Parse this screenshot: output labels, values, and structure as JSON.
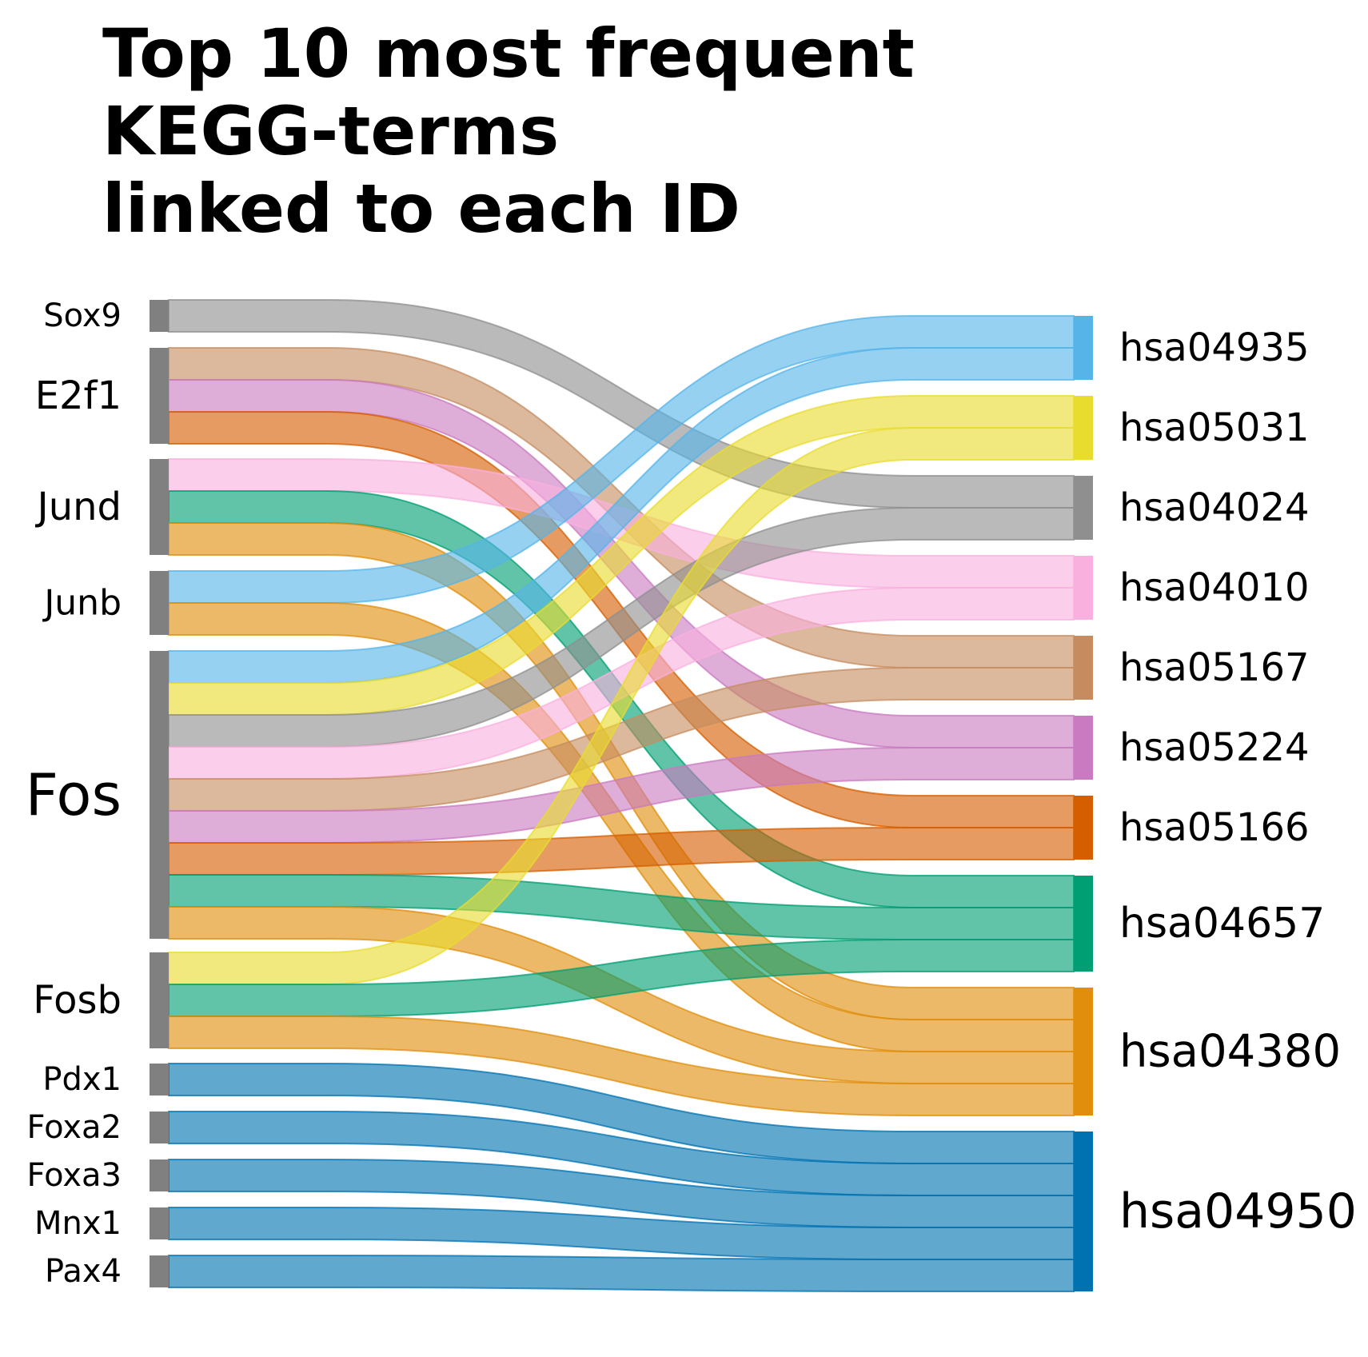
{
  "chart_data": {
    "type": "sankey",
    "title_lines": [
      "Top 10 most frequent",
      "KEGG-terms",
      "linked to each ID"
    ],
    "sources": [
      "Sox9",
      "E2f1",
      "Jund",
      "Junb",
      "Fos",
      "Fosb",
      "Pdx1",
      "Foxa2",
      "Foxa3",
      "Mnx1",
      "Pax4"
    ],
    "targets": [
      "hsa04935",
      "hsa05031",
      "hsa04024",
      "hsa04010",
      "hsa05167",
      "hsa05224",
      "hsa05166",
      "hsa04657",
      "hsa04380",
      "hsa04950"
    ],
    "target_colors": {
      "hsa04935": "#56B4E9",
      "hsa05031": "#E8DC2F",
      "hsa04024": "#8F8F8F",
      "hsa04010": "#F9B0DF",
      "hsa05167": "#C68C60",
      "hsa05224": "#C97AC0",
      "hsa05166": "#D55E00",
      "hsa04657": "#009E73",
      "hsa04380": "#E08E0B",
      "hsa04950": "#0072B2"
    },
    "source_node_color": "#808080",
    "links": [
      {
        "source": "Sox9",
        "target": "hsa04024",
        "value": 1
      },
      {
        "source": "E2f1",
        "target": "hsa05167",
        "value": 1
      },
      {
        "source": "E2f1",
        "target": "hsa05224",
        "value": 1
      },
      {
        "source": "E2f1",
        "target": "hsa05166",
        "value": 1
      },
      {
        "source": "Jund",
        "target": "hsa04010",
        "value": 1
      },
      {
        "source": "Jund",
        "target": "hsa04657",
        "value": 1
      },
      {
        "source": "Jund",
        "target": "hsa04380",
        "value": 1
      },
      {
        "source": "Junb",
        "target": "hsa04935",
        "value": 1
      },
      {
        "source": "Junb",
        "target": "hsa04380",
        "value": 1
      },
      {
        "source": "Fos",
        "target": "hsa04935",
        "value": 1
      },
      {
        "source": "Fos",
        "target": "hsa05031",
        "value": 1
      },
      {
        "source": "Fos",
        "target": "hsa04024",
        "value": 1
      },
      {
        "source": "Fos",
        "target": "hsa04010",
        "value": 1
      },
      {
        "source": "Fos",
        "target": "hsa05167",
        "value": 1
      },
      {
        "source": "Fos",
        "target": "hsa05224",
        "value": 1
      },
      {
        "source": "Fos",
        "target": "hsa05166",
        "value": 1
      },
      {
        "source": "Fos",
        "target": "hsa04657",
        "value": 1
      },
      {
        "source": "Fos",
        "target": "hsa04380",
        "value": 1
      },
      {
        "source": "Fosb",
        "target": "hsa05031",
        "value": 1
      },
      {
        "source": "Fosb",
        "target": "hsa04657",
        "value": 1
      },
      {
        "source": "Fosb",
        "target": "hsa04380",
        "value": 1
      },
      {
        "source": "Pdx1",
        "target": "hsa04950",
        "value": 1
      },
      {
        "source": "Foxa2",
        "target": "hsa04950",
        "value": 1
      },
      {
        "source": "Foxa3",
        "target": "hsa04950",
        "value": 1
      },
      {
        "source": "Mnx1",
        "target": "hsa04950",
        "value": 1
      },
      {
        "source": "Pax4",
        "target": "hsa04950",
        "value": 1
      }
    ]
  }
}
